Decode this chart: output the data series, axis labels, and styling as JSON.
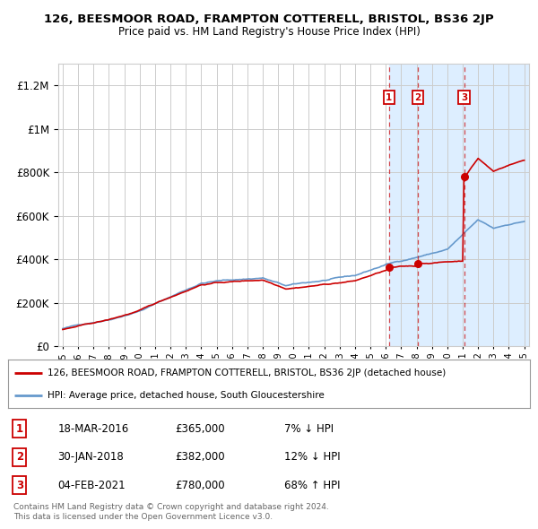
{
  "title": "126, BEESMOOR ROAD, FRAMPTON COTTERELL, BRISTOL, BS36 2JP",
  "subtitle": "Price paid vs. HM Land Registry's House Price Index (HPI)",
  "ylim": [
    0,
    1300000
  ],
  "yticks": [
    0,
    200000,
    400000,
    600000,
    800000,
    1000000,
    1200000
  ],
  "x_start_year": 1995,
  "x_end_year": 2025,
  "sales": [
    {
      "label": "1",
      "date": "18-MAR-2016",
      "price": 365000,
      "note": "7% ↓ HPI",
      "year": 2016.21
    },
    {
      "label": "2",
      "date": "30-JAN-2018",
      "price": 382000,
      "note": "12% ↓ HPI",
      "year": 2018.08
    },
    {
      "label": "3",
      "date": "04-FEB-2021",
      "price": 780000,
      "note": "68% ↑ HPI",
      "year": 2021.09
    }
  ],
  "legend_line1": "126, BEESMOOR ROAD, FRAMPTON COTTERELL, BRISTOL, BS36 2JP (detached house)",
  "legend_line2": "HPI: Average price, detached house, South Gloucestershire",
  "footer1": "Contains HM Land Registry data © Crown copyright and database right 2024.",
  "footer2": "This data is licensed under the Open Government Licence v3.0.",
  "red_color": "#cc0000",
  "blue_color": "#6699cc",
  "shade_color": "#ddeeff",
  "grid_color": "#cccccc",
  "bg_color": "#ffffff"
}
